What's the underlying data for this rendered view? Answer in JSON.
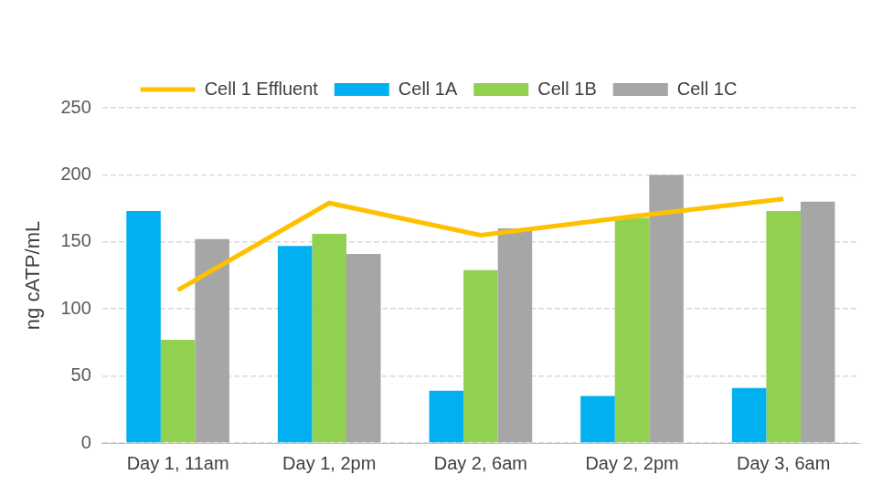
{
  "chart_data": {
    "type": "bar",
    "y_label": "ng cATP/mL",
    "categories": [
      "Day 1, 11am",
      "Day 1, 2pm",
      "Day 2, 6am",
      "Day 2, 2pm",
      "Day 3, 6am"
    ],
    "series": [
      {
        "name": "Cell 1A",
        "type": "bar",
        "color": "#00b0f0",
        "values": [
          173,
          147,
          39,
          35,
          41
        ]
      },
      {
        "name": "Cell 1B",
        "type": "bar",
        "color": "#92d050",
        "values": [
          77,
          156,
          129,
          168,
          173
        ]
      },
      {
        "name": "Cell 1C",
        "type": "bar",
        "color": "#a6a6a6",
        "values": [
          152,
          141,
          160,
          200,
          180
        ]
      },
      {
        "name": "Cell 1 Effluent",
        "type": "line",
        "color": "#ffc000",
        "marker": "none",
        "values": [
          114,
          179,
          155,
          169,
          182
        ]
      }
    ],
    "ylim": [
      0,
      250
    ],
    "yticks": [
      0,
      50,
      100,
      150,
      200,
      250
    ],
    "grid": true,
    "legend": "top"
  }
}
